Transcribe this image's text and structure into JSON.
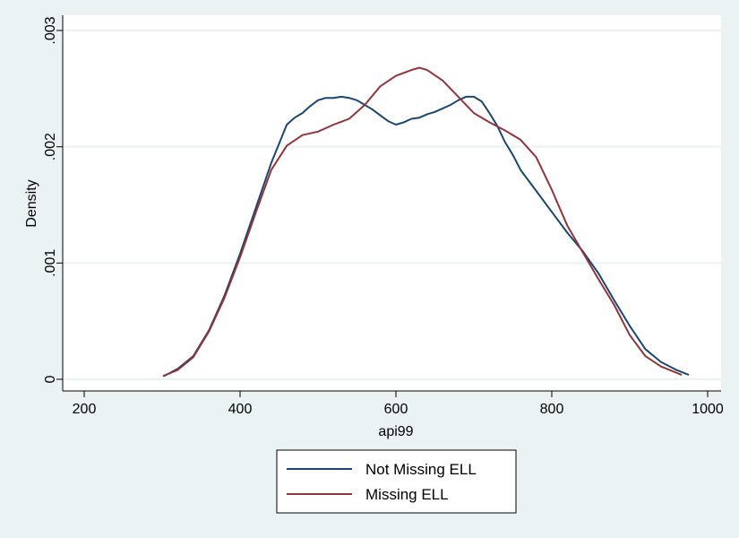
{
  "chart_data": {
    "type": "line",
    "title": "",
    "xlabel": "api99",
    "ylabel": "Density",
    "xlim": [
      200,
      1000
    ],
    "ylim": [
      0,
      0.003
    ],
    "x_ticks": [
      200,
      400,
      600,
      800,
      1000
    ],
    "x_tick_labels": [
      "200",
      "400",
      "600",
      "800",
      "1000"
    ],
    "y_ticks": [
      0,
      0.001,
      0.002,
      0.003
    ],
    "y_tick_labels": [
      "0",
      ".001",
      ".002",
      ".003"
    ],
    "grid": true,
    "legend_position": "bottom",
    "series": [
      {
        "name": "Not Missing ELL",
        "color": "#1a476f",
        "x": [
          303,
          320,
          340,
          360,
          380,
          400,
          420,
          440,
          460,
          470,
          480,
          490,
          500,
          510,
          520,
          530,
          540,
          550,
          560,
          570,
          580,
          590,
          600,
          610,
          620,
          630,
          640,
          650,
          660,
          670,
          680,
          690,
          700,
          710,
          720,
          730,
          740,
          750,
          760,
          780,
          800,
          820,
          840,
          860,
          880,
          900,
          920,
          940,
          960,
          975
        ],
        "y": [
          3e-05,
          9e-05,
          0.0002,
          0.00042,
          0.00072,
          0.00108,
          0.00147,
          0.00186,
          0.00219,
          0.00225,
          0.00229,
          0.00235,
          0.0024,
          0.00242,
          0.00242,
          0.00243,
          0.00242,
          0.0024,
          0.00236,
          0.00232,
          0.00227,
          0.00222,
          0.00219,
          0.00221,
          0.00224,
          0.00225,
          0.00228,
          0.0023,
          0.00233,
          0.00236,
          0.0024,
          0.00243,
          0.00243,
          0.00239,
          0.00229,
          0.00218,
          0.00204,
          0.00193,
          0.0018,
          0.00162,
          0.00144,
          0.00126,
          0.0011,
          0.00091,
          0.00068,
          0.00046,
          0.00026,
          0.00015,
          8e-05,
          4e-05
        ]
      },
      {
        "name": "Missing ELL",
        "color": "#90353b",
        "x": [
          302,
          320,
          340,
          360,
          380,
          400,
          420,
          440,
          460,
          480,
          500,
          520,
          540,
          560,
          580,
          600,
          620,
          630,
          640,
          660,
          680,
          700,
          720,
          740,
          760,
          780,
          800,
          820,
          840,
          860,
          880,
          900,
          920,
          940,
          966
        ],
        "y": [
          3e-05,
          8e-05,
          0.00019,
          0.00041,
          0.0007,
          0.00105,
          0.00143,
          0.0018,
          0.00201,
          0.0021,
          0.00213,
          0.00219,
          0.00224,
          0.00236,
          0.00252,
          0.00261,
          0.00266,
          0.00268,
          0.00266,
          0.00257,
          0.00243,
          0.00229,
          0.00221,
          0.00214,
          0.00206,
          0.00191,
          0.00163,
          0.00132,
          0.00109,
          0.00086,
          0.00064,
          0.00038,
          0.0002,
          0.00011,
          4e-05
        ]
      }
    ]
  }
}
